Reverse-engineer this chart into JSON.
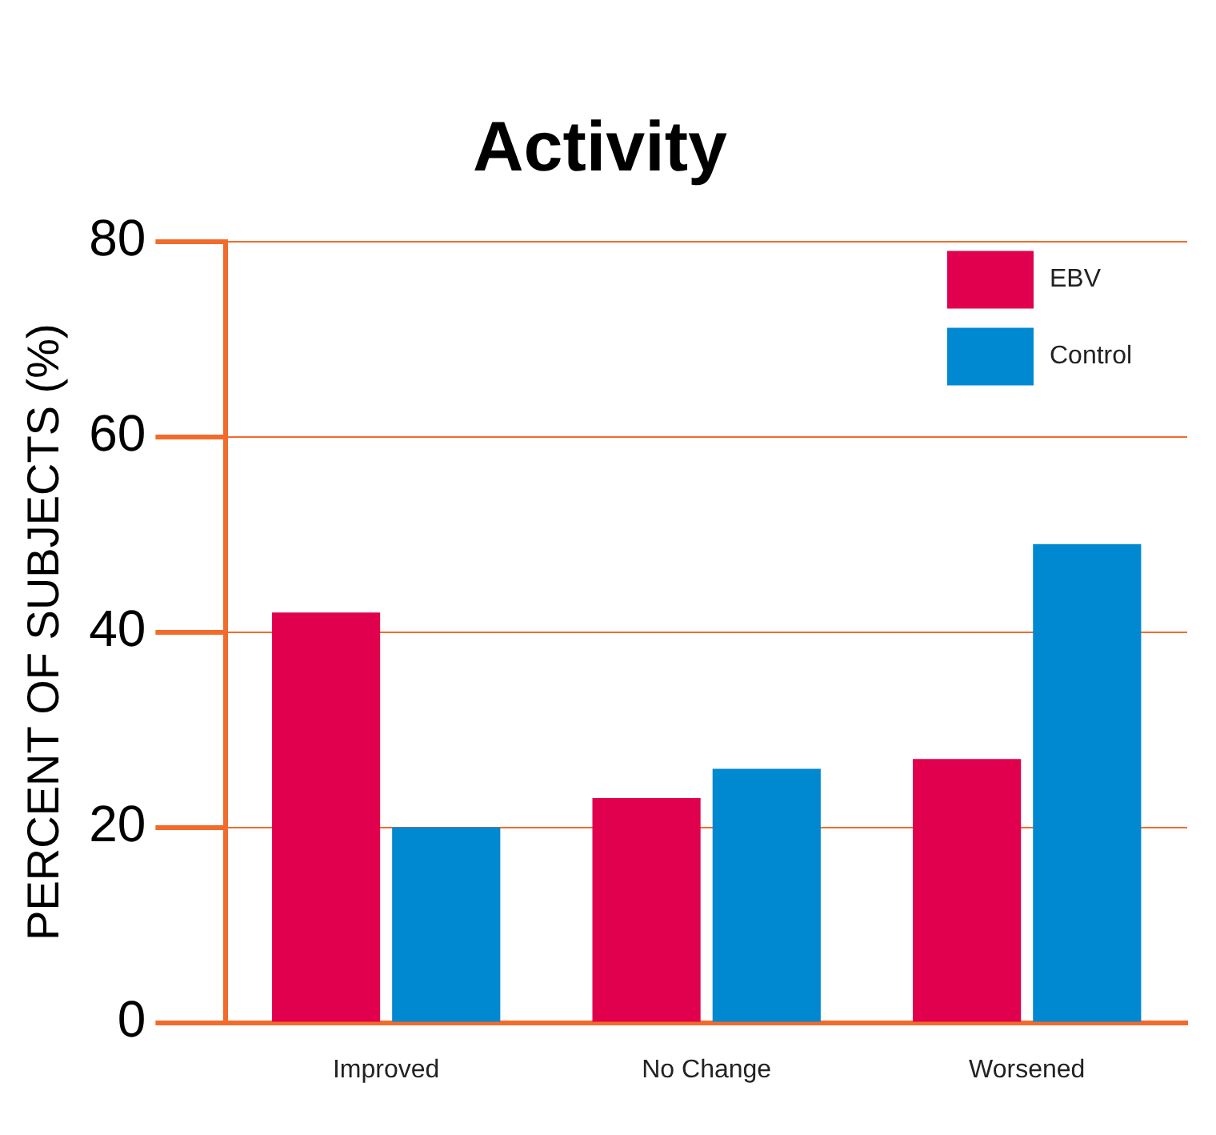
{
  "chart_data": {
    "type": "bar",
    "title": "Activity",
    "ylabel": "PERCENT OF SUBJECTS (%)",
    "categories": [
      "Improved",
      "No Change",
      "Worsened"
    ],
    "series": [
      {
        "name": "EBV",
        "color": "#e0004d",
        "values": [
          42,
          23,
          27
        ]
      },
      {
        "name": "Control",
        "color": "#0088d1",
        "values": [
          20,
          26,
          49
        ]
      }
    ],
    "ylim": [
      0,
      80
    ],
    "yticks": [
      0,
      20,
      40,
      60,
      80
    ],
    "grid": "y",
    "legend": "top right"
  }
}
